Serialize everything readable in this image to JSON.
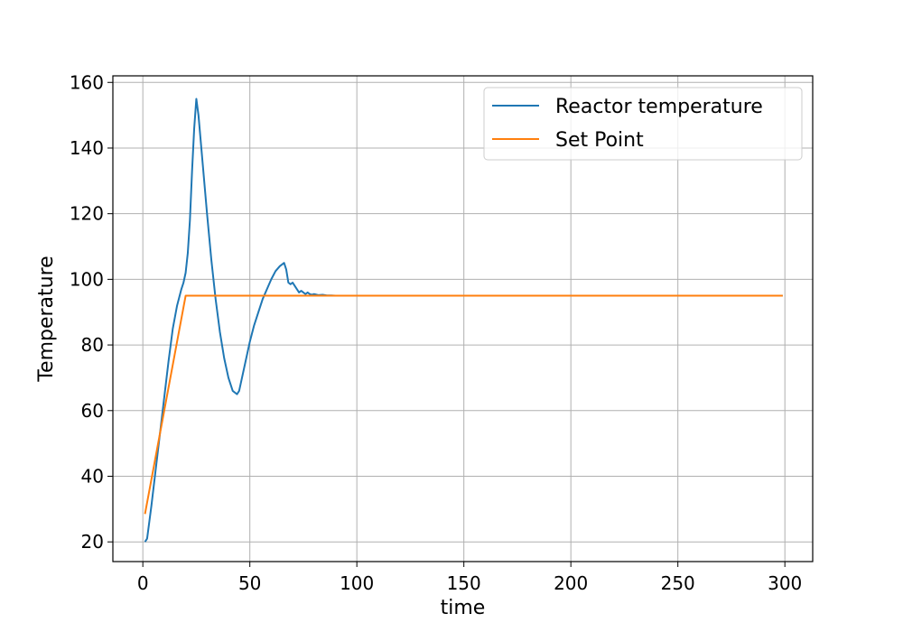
{
  "chart_data": {
    "type": "line",
    "xlabel": "time",
    "ylabel": "Temperature",
    "xlim": [
      -14,
      313
    ],
    "ylim": [
      14,
      162
    ],
    "xticks": [
      0,
      50,
      100,
      150,
      200,
      250,
      300
    ],
    "yticks": [
      20,
      40,
      60,
      80,
      100,
      120,
      140,
      160
    ],
    "grid": true,
    "legend": "top-right",
    "series": [
      {
        "name": "Reactor temperature",
        "color": "#1f77b4",
        "x": [
          1,
          2,
          4,
          6,
          8,
          10,
          12,
          14,
          16,
          18,
          19,
          20,
          21,
          22,
          23,
          24,
          25,
          26,
          28,
          30,
          32,
          34,
          36,
          38,
          40,
          42,
          44,
          45,
          46,
          48,
          50,
          52,
          54,
          56,
          58,
          60,
          62,
          64,
          66,
          67,
          68,
          69,
          70,
          71,
          72,
          73,
          74,
          75,
          76,
          77,
          78,
          79,
          80,
          82,
          84,
          86,
          88,
          90,
          95,
          100,
          150,
          200,
          250,
          299
        ],
        "y": [
          20,
          21,
          31,
          42,
          53,
          64,
          75,
          85,
          92,
          97,
          99,
          102,
          108,
          118,
          133,
          146,
          155,
          150,
          135,
          120,
          106,
          94,
          84,
          76,
          70,
          66,
          65,
          66,
          69,
          75,
          81,
          86,
          90,
          94,
          97,
          100,
          102.5,
          104,
          105,
          103,
          99,
          98.5,
          99,
          98,
          97,
          96,
          96.5,
          96,
          95.5,
          96,
          95.5,
          95.3,
          95.5,
          95.2,
          95.3,
          95.1,
          95.1,
          95,
          95,
          95,
          95,
          95,
          95,
          95
        ]
      },
      {
        "name": "Set Point",
        "color": "#ff7f0e",
        "x": [
          1,
          20,
          100,
          200,
          299
        ],
        "y": [
          28.5,
          95,
          95,
          95,
          95
        ]
      }
    ]
  }
}
